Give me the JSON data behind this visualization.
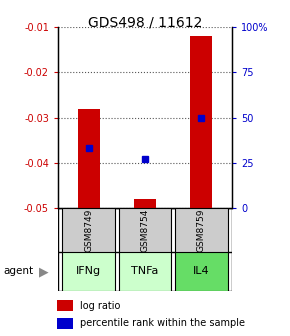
{
  "title": "GDS498 / 11612",
  "samples": [
    "GSM8749",
    "GSM8754",
    "GSM8759"
  ],
  "agents": [
    "IFNg",
    "TNFa",
    "IL4"
  ],
  "x_positions": [
    0,
    1,
    2
  ],
  "log_ratios": [
    -0.028,
    -0.048,
    -0.012
  ],
  "percentile_ranks": [
    33,
    27,
    50
  ],
  "ylim_left": [
    -0.05,
    -0.01
  ],
  "ylim_right": [
    0,
    100
  ],
  "yticks_left": [
    -0.05,
    -0.04,
    -0.03,
    -0.02,
    -0.01
  ],
  "yticks_right": [
    0,
    25,
    50,
    75,
    100
  ],
  "ytick_labels_left": [
    "-0.05",
    "-0.04",
    "-0.03",
    "-0.02",
    "-0.01"
  ],
  "ytick_labels_right": [
    "0",
    "25",
    "50",
    "75",
    "100%"
  ],
  "bar_color": "#cc0000",
  "dot_color": "#0000cc",
  "agent_colors": [
    "#ccffcc",
    "#ccffcc",
    "#66dd66"
  ],
  "sample_box_color": "#cccccc",
  "grid_color": "#555555",
  "legend_bar_label": "log ratio",
  "legend_dot_label": "percentile rank within the sample",
  "bar_width": 0.4
}
